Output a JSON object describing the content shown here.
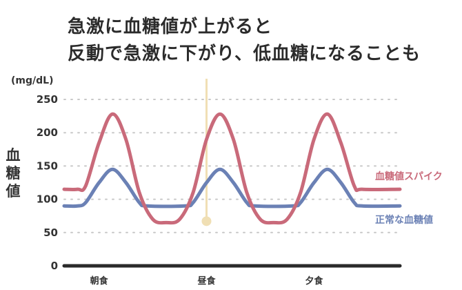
{
  "title_lines": [
    "急激に血糖値が上がると",
    "反動で急激に下がり、低血糖になることも"
  ],
  "chart_data": {
    "type": "line",
    "unit": "(mg/dL)",
    "ylabel": "血糖値",
    "ylim": [
      0,
      250
    ],
    "yticks": [
      0,
      50,
      100,
      150,
      200,
      250
    ],
    "grid": true,
    "categories": [
      "朝食",
      "昼食",
      "夕食"
    ],
    "category_x": [
      0.5,
      2.5,
      4.5
    ],
    "xlim": [
      -0.15,
      6.1
    ],
    "marker": {
      "x": 2.5,
      "y": 65,
      "color": "#f0dfb4"
    },
    "legend_placement": "right",
    "series": [
      {
        "name": "血糖値スパイク",
        "color": "#c96a7a",
        "points": [
          [
            -0.15,
            115
          ],
          [
            0.1,
            115
          ],
          [
            0.25,
            120
          ],
          [
            0.5,
            185
          ],
          [
            0.75,
            228
          ],
          [
            1.0,
            190
          ],
          [
            1.25,
            110
          ],
          [
            1.5,
            70
          ],
          [
            1.75,
            65
          ],
          [
            2.0,
            70
          ],
          [
            2.25,
            110
          ],
          [
            2.5,
            190
          ],
          [
            2.75,
            228
          ],
          [
            3.0,
            190
          ],
          [
            3.25,
            110
          ],
          [
            3.5,
            70
          ],
          [
            3.75,
            65
          ],
          [
            4.0,
            70
          ],
          [
            4.25,
            110
          ],
          [
            4.5,
            190
          ],
          [
            4.75,
            228
          ],
          [
            5.0,
            185
          ],
          [
            5.25,
            120
          ],
          [
            5.4,
            115
          ],
          [
            6.1,
            115
          ]
        ]
      },
      {
        "name": "正常な血糖値",
        "color": "#6b81b5",
        "points": [
          [
            -0.15,
            90
          ],
          [
            0.1,
            90
          ],
          [
            0.25,
            95
          ],
          [
            0.5,
            125
          ],
          [
            0.75,
            145
          ],
          [
            1.0,
            125
          ],
          [
            1.25,
            95
          ],
          [
            1.4,
            90
          ],
          [
            2.1,
            90
          ],
          [
            2.25,
            95
          ],
          [
            2.5,
            125
          ],
          [
            2.75,
            145
          ],
          [
            3.0,
            125
          ],
          [
            3.25,
            95
          ],
          [
            3.4,
            90
          ],
          [
            4.1,
            90
          ],
          [
            4.25,
            95
          ],
          [
            4.5,
            125
          ],
          [
            4.75,
            145
          ],
          [
            5.0,
            125
          ],
          [
            5.25,
            95
          ],
          [
            5.4,
            90
          ],
          [
            6.1,
            90
          ]
        ]
      }
    ]
  }
}
